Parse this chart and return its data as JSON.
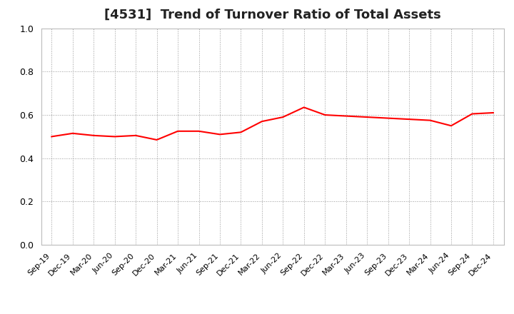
{
  "title": "[4531]  Trend of Turnover Ratio of Total Assets",
  "title_fontsize": 13,
  "line_color": "#FF0000",
  "line_width": 1.5,
  "background_color": "#FFFFFF",
  "grid_color": "#999999",
  "ylim": [
    0.0,
    1.0
  ],
  "yticks": [
    0.0,
    0.2,
    0.4,
    0.6,
    0.8,
    1.0
  ],
  "labels": [
    "Sep-19",
    "Dec-19",
    "Mar-20",
    "Jun-20",
    "Sep-20",
    "Dec-20",
    "Mar-21",
    "Jun-21",
    "Sep-21",
    "Dec-21",
    "Mar-22",
    "Jun-22",
    "Sep-22",
    "Dec-22",
    "Mar-23",
    "Jun-23",
    "Sep-23",
    "Dec-23",
    "Mar-24",
    "Jun-24",
    "Sep-24",
    "Dec-24"
  ],
  "values": [
    0.5,
    0.515,
    0.505,
    0.5,
    0.505,
    0.485,
    0.525,
    0.525,
    0.51,
    0.52,
    0.57,
    0.59,
    0.635,
    0.6,
    0.595,
    0.59,
    0.585,
    0.58,
    0.575,
    0.55,
    0.605,
    0.61
  ]
}
